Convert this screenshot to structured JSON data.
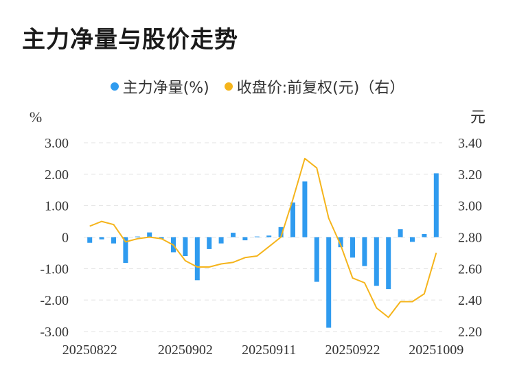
{
  "title": "主力净量与股价走势",
  "chart_data": {
    "type": "bar+line",
    "legend": [
      {
        "label": "主力净量(%)",
        "color": "#2f9bef"
      },
      {
        "label": "收盘价:前复权(元)（右）",
        "color": "#f5b41b"
      }
    ],
    "left_axis": {
      "unit": "%",
      "ticks": [
        "3.00",
        "2.00",
        "1.00",
        "0",
        "-1.00",
        "-2.00",
        "-3.00"
      ],
      "ylim": [
        -3,
        3
      ]
    },
    "right_axis": {
      "unit": "元",
      "ticks": [
        "3.40",
        "3.20",
        "3.00",
        "2.80",
        "2.60",
        "2.40",
        "2.20"
      ],
      "ylim": [
        2.2,
        3.4
      ]
    },
    "x_tick_labels": [
      "20250822",
      "20250902",
      "20250911",
      "20250922",
      "20251009"
    ],
    "series": [
      {
        "name": "主力净量(%)",
        "type": "bar",
        "values": [
          -0.18,
          -0.07,
          -0.2,
          -0.82,
          0.02,
          0.15,
          -0.05,
          -0.48,
          -0.6,
          -1.37,
          -0.38,
          -0.2,
          0.14,
          -0.1,
          0.02,
          0.05,
          0.32,
          1.1,
          1.77,
          -1.42,
          -2.88,
          -0.32,
          -0.65,
          -0.92,
          -1.55,
          -1.65,
          0.25,
          -0.15,
          0.1,
          2.03
        ]
      },
      {
        "name": "收盘价:前复权(元)（右）",
        "type": "line",
        "values": [
          2.87,
          2.9,
          2.88,
          2.77,
          2.79,
          2.8,
          2.79,
          2.75,
          2.65,
          2.61,
          2.61,
          2.63,
          2.64,
          2.67,
          2.68,
          2.74,
          2.8,
          3.04,
          3.3,
          3.24,
          2.92,
          2.75,
          2.54,
          2.51,
          2.35,
          2.29,
          2.39,
          2.39,
          2.44,
          2.7
        ]
      }
    ]
  }
}
